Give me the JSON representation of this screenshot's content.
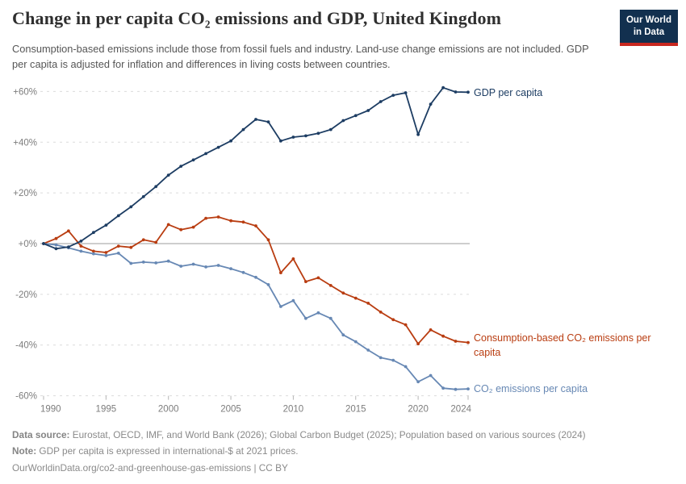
{
  "header": {
    "title": "Change in per capita CO₂ emissions and GDP, United Kingdom",
    "subtitle": "Consumption-based emissions include those from fossil fuels and industry. Land-use change emissions are not included. GDP per capita is adjusted for inflation and differences in living costs between countries.",
    "logo_line1": "Our World",
    "logo_line2": "in Data"
  },
  "footer": {
    "datasource_label": "Data source:",
    "datasource_text": " Eurostat, OECD, IMF, and World Bank (2026); Global Carbon Budget (2025); Population based on various sources (2024)",
    "note_label": "Note:",
    "note_text": " GDP per capita is expressed in international-$ at 2021 prices.",
    "link_text": "OurWorldinData.org/co2-and-greenhouse-gas-emissions | CC BY"
  },
  "colors": {
    "gdp_line": "#1d3d63",
    "consumption_line": "#b93d11",
    "co2_line": "#6788b4",
    "grid": "#dcdcdc",
    "zero_line": "#9c9c9c",
    "axis_text": "#7d7d7d",
    "tick_mark": "#b5b5b5",
    "logo_bg": "#12304f",
    "logo_accent": "#c8271f"
  },
  "chart_data": {
    "type": "line",
    "title": "Change in per capita CO₂ emissions and GDP, United Kingdom",
    "xlabel": "",
    "ylabel": "",
    "xlim": [
      1990,
      2024
    ],
    "ylim": [
      -60,
      60
    ],
    "grid": "horizontal-dashed",
    "legend_position": "right-of-line-ends",
    "x": [
      1990,
      1991,
      1992,
      1993,
      1994,
      1995,
      1996,
      1997,
      1998,
      1999,
      2000,
      2001,
      2002,
      2003,
      2004,
      2005,
      2006,
      2007,
      2008,
      2009,
      2010,
      2011,
      2012,
      2013,
      2014,
      2015,
      2016,
      2017,
      2018,
      2019,
      2020,
      2021,
      2022,
      2023,
      2024
    ],
    "series": [
      {
        "name": "GDP per capita",
        "color": "#1d3d63",
        "unit": "% change from 1990",
        "values": [
          0,
          -2,
          -1.3,
          1,
          4.4,
          7.3,
          11,
          14.5,
          18.5,
          22.5,
          27,
          30.5,
          33,
          35.5,
          38,
          40.5,
          45,
          49,
          48,
          40.5,
          42,
          42.5,
          43.5,
          45,
          48.5,
          50.5,
          52.5,
          56,
          58.5,
          59.5,
          43,
          55,
          61.5,
          59.8,
          59.7
        ]
      },
      {
        "name": "Consumption-based CO₂ emissions per capita",
        "color": "#b93d11",
        "unit": "% change from 1990",
        "values": [
          0,
          2,
          5,
          -1,
          -3,
          -3.5,
          -1,
          -1.5,
          1.5,
          0.5,
          7.5,
          5.5,
          6.5,
          10,
          10.5,
          9,
          8.5,
          7,
          1.5,
          -11.5,
          -6,
          -15,
          -13.5,
          -16.5,
          -19.5,
          -21.5,
          -23.5,
          -27,
          -30,
          -32,
          -39.5,
          -34,
          -36.5,
          -38.5,
          -39
        ]
      },
      {
        "name": "CO₂ emissions per capita",
        "color": "#6788b4",
        "unit": "% change from 1990",
        "values": [
          0,
          -0.5,
          -1.7,
          -3,
          -4,
          -4.7,
          -3.8,
          -7.8,
          -7.3,
          -7.6,
          -6.9,
          -8.9,
          -8.1,
          -9.2,
          -8.6,
          -9.9,
          -11.4,
          -13.3,
          -16.2,
          -24.8,
          -22.5,
          -29.5,
          -27.3,
          -29.5,
          -36,
          -38.7,
          -42,
          -45,
          -46,
          -48.5,
          -54.5,
          -52,
          -57,
          -57.5,
          -57.3
        ]
      }
    ],
    "yticks": [
      {
        "value": 60,
        "label": "+60%"
      },
      {
        "value": 40,
        "label": "+40%"
      },
      {
        "value": 20,
        "label": "+20%"
      },
      {
        "value": 0,
        "label": "+0%"
      },
      {
        "value": -20,
        "label": "-20%"
      },
      {
        "value": -40,
        "label": "-40%"
      },
      {
        "value": -60,
        "label": "-60%"
      }
    ],
    "xticks": [
      {
        "year": 1990,
        "label": "1990"
      },
      {
        "year": 1995,
        "label": "1995"
      },
      {
        "year": 2000,
        "label": "2000"
      },
      {
        "year": 2005,
        "label": "2005"
      },
      {
        "year": 2010,
        "label": "2010"
      },
      {
        "year": 2015,
        "label": "2015"
      },
      {
        "year": 2020,
        "label": "2020"
      },
      {
        "year": 2024,
        "label": "2024"
      }
    ]
  }
}
